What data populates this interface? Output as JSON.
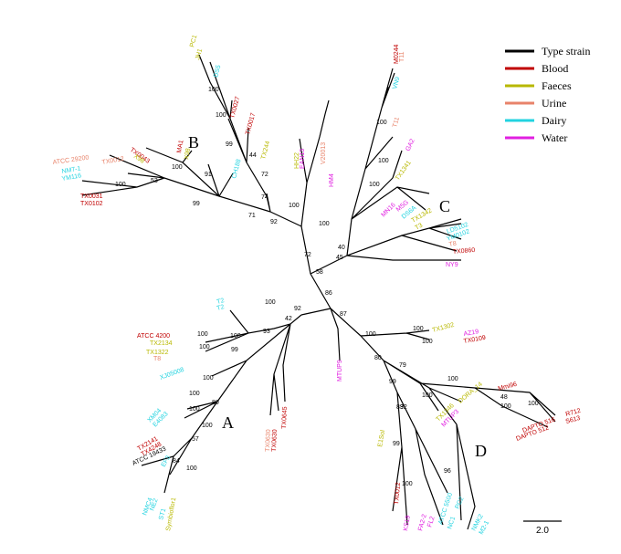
{
  "colors": {
    "type_strain": "#000000",
    "blood": "#c00000",
    "faeces": "#b8b800",
    "urine": "#e8836a",
    "dairy": "#22d3e0",
    "water": "#e020e0"
  },
  "legend": {
    "items": [
      {
        "label": "Type strain",
        "color": "#000000"
      },
      {
        "label": "Blood",
        "color": "#c00000"
      },
      {
        "label": "Faeces",
        "color": "#b8b800"
      },
      {
        "label": "Urine",
        "color": "#e8836a"
      },
      {
        "label": "Dairy",
        "color": "#22d3e0"
      },
      {
        "label": "Water",
        "color": "#e020e0"
      }
    ]
  },
  "clusters": {
    "a": "A",
    "b": "B",
    "c": "C",
    "d": "D"
  },
  "scale_label": "2.0",
  "bootstrap": [
    "100",
    "100",
    "99",
    "72",
    "74",
    "44",
    "91",
    "100",
    "53",
    "100",
    "99",
    "71",
    "92",
    "100",
    "100",
    "72",
    "100",
    "100",
    "100",
    "40",
    "45",
    "58",
    "86",
    "100",
    "92",
    "42",
    "93",
    "100",
    "100",
    "99",
    "100",
    "100",
    "100",
    "100",
    "80",
    "57",
    "100",
    "84",
    "100",
    "100",
    "100",
    "100",
    "99",
    "80",
    "83",
    "99",
    "79",
    "100",
    "48",
    "100",
    "100",
    "100",
    "87",
    "100",
    "92",
    "96"
  ],
  "taxa": [
    {
      "name": "PC1",
      "group": "faeces"
    },
    {
      "name": "JH1",
      "group": "faeces"
    },
    {
      "name": "DS5",
      "group": "dairy"
    },
    {
      "name": "TX0027",
      "group": "blood"
    },
    {
      "name": "TX0017",
      "group": "blood"
    },
    {
      "name": "TX244",
      "group": "faeces"
    },
    {
      "name": "CH188",
      "group": "dairy"
    },
    {
      "name": "MA1",
      "group": "blood"
    },
    {
      "name": "X98",
      "group": "faeces"
    },
    {
      "name": "TX0043",
      "group": "blood"
    },
    {
      "name": "X98",
      "group": "faeces"
    },
    {
      "name": "TX0012",
      "group": "urine"
    },
    {
      "name": "ATCC 29200",
      "group": "urine"
    },
    {
      "name": "NM7-1",
      "group": "dairy"
    },
    {
      "name": "YM116",
      "group": "dairy"
    },
    {
      "name": "TX0031",
      "group": "blood"
    },
    {
      "name": "TX0102",
      "group": "blood"
    },
    {
      "name": "HH22",
      "group": "faeces"
    },
    {
      "name": "EAN13",
      "group": "water"
    },
    {
      "name": "V20013",
      "group": "urine"
    },
    {
      "name": "HM4",
      "group": "water"
    },
    {
      "name": "M0244",
      "group": "blood"
    },
    {
      "name": "T11",
      "group": "urine"
    },
    {
      "name": "VN9",
      "group": "dairy"
    },
    {
      "name": "T11",
      "group": "urine"
    },
    {
      "name": "GA2",
      "group": "water"
    },
    {
      "name": "TX1341",
      "group": "faeces"
    },
    {
      "name": "MN16",
      "group": "water"
    },
    {
      "name": "M5G",
      "group": "water"
    },
    {
      "name": "DS6A",
      "group": "dairy"
    },
    {
      "name": "TX1342",
      "group": "faeces"
    },
    {
      "name": "T3",
      "group": "faeces"
    },
    {
      "name": "LD5102",
      "group": "dairy"
    },
    {
      "name": "YM0102",
      "group": "dairy"
    },
    {
      "name": "T8",
      "group": "urine"
    },
    {
      "name": "TX0860",
      "group": "blood"
    },
    {
      "name": "NY9",
      "group": "water"
    },
    {
      "name": "T2",
      "group": "dairy"
    },
    {
      "name": "T2",
      "group": "dairy"
    },
    {
      "name": "ATCC 4200",
      "group": "blood"
    },
    {
      "name": "TX2134",
      "group": "faeces"
    },
    {
      "name": "TX1322",
      "group": "faeces"
    },
    {
      "name": "T8",
      "group": "urine"
    },
    {
      "name": "XJ05008",
      "group": "dairy"
    },
    {
      "name": "XM04",
      "group": "dairy"
    },
    {
      "name": "E4083",
      "group": "dairy"
    },
    {
      "name": "TX2141",
      "group": "blood"
    },
    {
      "name": "TX4248",
      "group": "blood"
    },
    {
      "name": "ATCC 19433",
      "group": "type_strain"
    },
    {
      "name": "EF3",
      "group": "dairy"
    },
    {
      "name": "NMC4",
      "group": "dairy"
    },
    {
      "name": "NE2",
      "group": "dairy"
    },
    {
      "name": "ST1",
      "group": "dairy"
    },
    {
      "name": "Symbioflor1",
      "group": "faeces"
    },
    {
      "name": "TX0630",
      "group": "urine"
    },
    {
      "name": "TX0630",
      "group": "blood"
    },
    {
      "name": "TX0645",
      "group": "blood"
    },
    {
      "name": "MTUP9",
      "group": "water"
    },
    {
      "name": "TX1302",
      "group": "faeces"
    },
    {
      "name": "AZ19",
      "group": "water"
    },
    {
      "name": "TX0109",
      "group": "blood"
    },
    {
      "name": "Mmi96",
      "group": "blood"
    },
    {
      "name": "R712",
      "group": "blood"
    },
    {
      "name": "S613",
      "group": "blood"
    },
    {
      "name": "DAPTO 516",
      "group": "blood"
    },
    {
      "name": "DAPTO 512",
      "group": "blood"
    },
    {
      "name": "DORA_14",
      "group": "faeces"
    },
    {
      "name": "TX1346",
      "group": "faeces"
    },
    {
      "name": "MTUP3",
      "group": "water"
    },
    {
      "name": "E1Sol",
      "group": "faeces"
    },
    {
      "name": "TX0012",
      "group": "blood"
    },
    {
      "name": "KS19",
      "group": "water"
    },
    {
      "name": "FA2-2",
      "group": "water"
    },
    {
      "name": "FL2",
      "group": "water"
    },
    {
      "name": "ATCC 5500",
      "group": "dairy"
    },
    {
      "name": "NC1",
      "group": "dairy"
    },
    {
      "name": "PC2",
      "group": "dairy"
    },
    {
      "name": "NMK2",
      "group": "dairy"
    },
    {
      "name": "M2-1",
      "group": "dairy"
    }
  ]
}
